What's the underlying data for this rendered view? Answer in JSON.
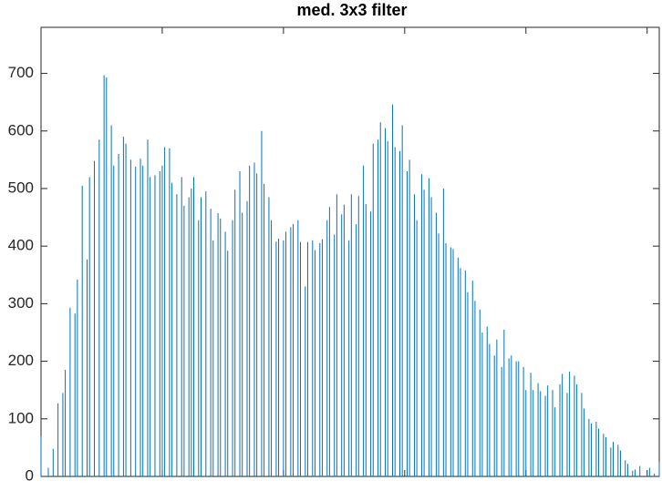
{
  "chart_data": {
    "type": "stem",
    "title": "med. 3x3 filter",
    "x": [
      0,
      3,
      5,
      7,
      9,
      10,
      12,
      14,
      15,
      17,
      19,
      20,
      22,
      24,
      26,
      27,
      29,
      30,
      32,
      34,
      35,
      37,
      39,
      41,
      42,
      44,
      45,
      47,
      49,
      50,
      51,
      53,
      54,
      56,
      58,
      59,
      61,
      62,
      63,
      65,
      66,
      68,
      70,
      71,
      73,
      74,
      76,
      77,
      79,
      80,
      82,
      83,
      85,
      86,
      88,
      89,
      91,
      92,
      94,
      95,
      97,
      98,
      100,
      101,
      103,
      104,
      106,
      107,
      109,
      110,
      112,
      113,
      115,
      116,
      118,
      119,
      121,
      122,
      124,
      125,
      127,
      128,
      130,
      131,
      133,
      134,
      136,
      137,
      139,
      140,
      142,
      143,
      145,
      146,
      148,
      149,
      151,
      152,
      154,
      155,
      157,
      158,
      160,
      161,
      163,
      164,
      166,
      167,
      169,
      170,
      172,
      173,
      175,
      176,
      178,
      179,
      181,
      182,
      184,
      185,
      187,
      188,
      190,
      191,
      193,
      194,
      196,
      197,
      199,
      200,
      202,
      203,
      205,
      206,
      208,
      209,
      211,
      212,
      214,
      215,
      217,
      218,
      220,
      221,
      223,
      224,
      226,
      227,
      229,
      230,
      232,
      233,
      235,
      236,
      238,
      239,
      241,
      242,
      244,
      245,
      247,
      250,
      251,
      253,
      255
    ],
    "values": [
      70,
      15,
      48,
      127,
      145,
      185,
      293,
      283,
      342,
      505,
      377,
      520,
      548,
      585,
      697,
      693,
      610,
      540,
      560,
      590,
      578,
      550,
      538,
      552,
      540,
      585,
      520,
      523,
      530,
      540,
      572,
      570,
      510,
      490,
      520,
      470,
      485,
      500,
      520,
      445,
      485,
      495,
      465,
      410,
      457,
      448,
      425,
      392,
      445,
      498,
      530,
      458,
      478,
      540,
      545,
      526,
      600,
      508,
      485,
      445,
      408,
      413,
      410,
      425,
      433,
      438,
      445,
      407,
      330,
      407,
      410,
      393,
      405,
      412,
      445,
      468,
      420,
      490,
      455,
      472,
      410,
      490,
      438,
      487,
      540,
      473,
      460,
      578,
      585,
      615,
      605,
      582,
      646,
      572,
      565,
      610,
      530,
      550,
      490,
      445,
      525,
      498,
      518,
      485,
      458,
      422,
      500,
      405,
      398,
      395,
      380,
      362,
      358,
      320,
      340,
      305,
      290,
      250,
      260,
      230,
      210,
      238,
      190,
      255,
      205,
      210,
      200,
      200,
      190,
      150,
      180,
      150,
      162,
      148,
      140,
      158,
      150,
      120,
      160,
      178,
      145,
      182,
      175,
      160,
      145,
      118,
      100,
      92,
      95,
      83,
      74,
      68,
      50,
      60,
      55,
      45,
      28,
      22,
      10,
      12,
      18,
      8,
      15,
      5,
      25
    ],
    "color": "#0072bd",
    "xlim": [
      0,
      255
    ],
    "xticks": [
      50,
      100,
      150,
      200,
      250
    ],
    "ylim": [
      0,
      780
    ],
    "yticks": [
      0,
      100,
      200,
      300,
      400,
      500,
      600,
      700
    ]
  }
}
